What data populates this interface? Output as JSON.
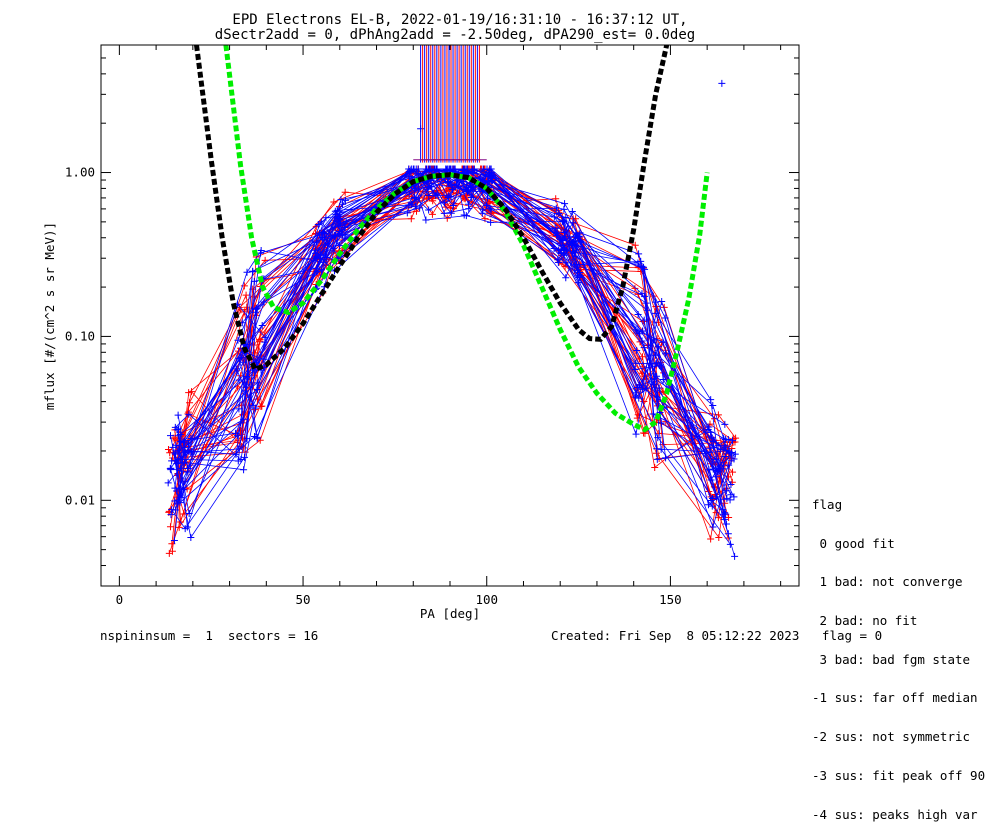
{
  "chart_data": {
    "type": "scatter",
    "title": "EPD Electrons EL-B, 2022-01-19/16:31:10 - 16:37:12 UT,",
    "subtitle": "dSectr2add = 0, dPhAng2add = -2.50deg, dPA290_est=   0.0deg",
    "xlabel": "PA [deg]",
    "ylabel": "mflux [#/(cm^2 s sr MeV)]",
    "xlim": [
      -5,
      185
    ],
    "ylim": [
      0.003,
      6
    ],
    "yscale": "log",
    "xticks": [
      0,
      50,
      100,
      150
    ],
    "xtick_labels": [
      "0",
      "50",
      "100",
      "150"
    ],
    "yticks": [
      0.01,
      0.1,
      1.0
    ],
    "ytick_labels": [
      "0.01",
      "0.10",
      "1.00"
    ],
    "grid": false,
    "pa_sector_centers": [
      15,
      18,
      33,
      38,
      55,
      60,
      80,
      85,
      90,
      95,
      100,
      120,
      125,
      142,
      147,
      162,
      166
    ],
    "series": [
      {
        "color": "#ff0000",
        "role": "measured spectra (red)",
        "peak_value_range": [
          0.75,
          1.0
        ],
        "low_value_range": [
          0.004,
          0.3
        ]
      },
      {
        "color": "#0000ff",
        "role": "measured spectra (blue)",
        "peak_value_range": [
          0.7,
          1.05
        ],
        "low_value_range": [
          0.003,
          0.5
        ],
        "outliers": [
          {
            "x": 164,
            "y": 3.5
          },
          {
            "x": 82,
            "y": 1.85
          }
        ]
      },
      {
        "color": "#000000",
        "role": "fit curve",
        "x": [
          21,
          25,
          28,
          31,
          34,
          37,
          40,
          45,
          50,
          55,
          60,
          65,
          70,
          75,
          80,
          85,
          90,
          95,
          100,
          105,
          110,
          115,
          120,
          125,
          128,
          131,
          134,
          137,
          140,
          143,
          146,
          149
        ],
        "y": [
          6,
          1.2,
          0.4,
          0.16,
          0.085,
          0.063,
          0.067,
          0.085,
          0.12,
          0.18,
          0.27,
          0.4,
          0.57,
          0.74,
          0.88,
          0.95,
          0.97,
          0.93,
          0.8,
          0.6,
          0.4,
          0.25,
          0.16,
          0.11,
          0.097,
          0.096,
          0.115,
          0.2,
          0.45,
          1.2,
          3.0,
          6
        ]
      },
      {
        "color": "#00ee00",
        "role": "fit curve",
        "x": [
          29,
          33,
          36,
          39,
          42,
          46,
          50,
          55,
          60,
          65,
          70,
          75,
          80,
          85,
          90,
          95,
          100,
          105,
          110,
          115,
          120,
          125,
          130,
          135,
          140,
          143,
          146,
          149,
          152,
          155,
          158,
          160
        ],
        "y": [
          6,
          1.1,
          0.4,
          0.2,
          0.15,
          0.14,
          0.16,
          0.22,
          0.32,
          0.45,
          0.6,
          0.75,
          0.88,
          0.95,
          0.97,
          0.93,
          0.8,
          0.58,
          0.36,
          0.2,
          0.11,
          0.065,
          0.045,
          0.034,
          0.029,
          0.027,
          0.03,
          0.045,
          0.085,
          0.17,
          0.42,
          1.0
        ]
      }
    ],
    "vertical_lines_x_range": [
      82,
      98
    ],
    "vertical_lines_y_range": [
      1.15,
      6
    ]
  },
  "legend": {
    "title": "flag",
    "items": [
      " 0 good fit",
      " 1 bad: not converge",
      " 2 bad: no fit",
      " 3 bad: bad fgm state",
      "-1 sus: far off median",
      "-2 sus: not symmetric",
      "-3 sus: fit peak off 90",
      "-4 sus: peaks high var"
    ]
  },
  "footer": {
    "left": "nspininsum =  1  sectors = 16",
    "right": "Created: Fri Sep  8 05:12:22 2023   flag = 0"
  }
}
